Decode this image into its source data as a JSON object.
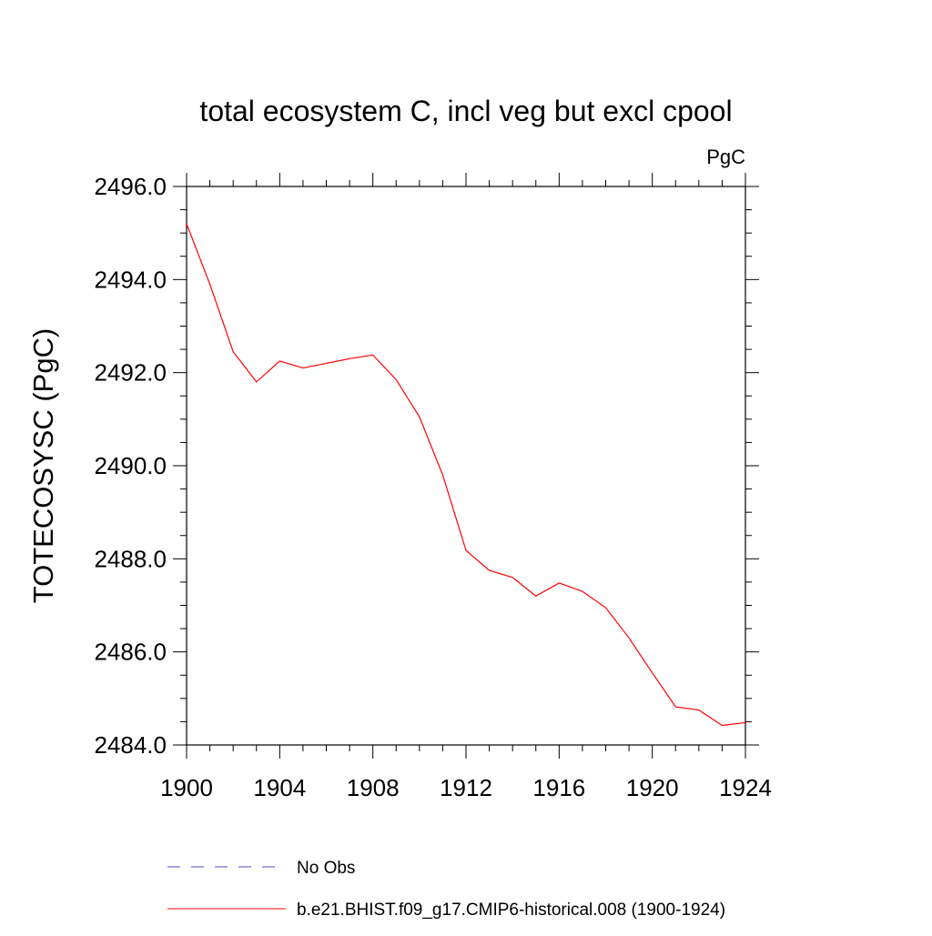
{
  "chart_data": {
    "type": "line",
    "title": "total ecosystem C, incl veg but excl cpool",
    "units": "PgC",
    "ylabel": "TOTECOSYSC  (PgC)",
    "xlabel": "",
    "xlim": [
      1900,
      1924
    ],
    "ylim": [
      2484.0,
      2496.0
    ],
    "x_ticks": [
      "1900",
      "1904",
      "1908",
      "1912",
      "1916",
      "1920",
      "1924"
    ],
    "y_ticks": [
      "2484.0",
      "2486.0",
      "2488.0",
      "2490.0",
      "2492.0",
      "2494.0",
      "2496.0"
    ],
    "grid": false,
    "legend_position": "bottom",
    "series": [
      {
        "name": "No Obs",
        "color": "#4a4acc",
        "style": "dashed",
        "x": [],
        "y": []
      },
      {
        "name": "b.e21.BHIST.f09_g17.CMIP6-historical.008 (1900-1924)",
        "color": "#ff0000",
        "style": "solid",
        "x": [
          1900,
          1901,
          1902,
          1903,
          1904,
          1905,
          1906,
          1907,
          1908,
          1909,
          1910,
          1911,
          1912,
          1913,
          1914,
          1915,
          1916,
          1917,
          1918,
          1919,
          1920,
          1921,
          1922,
          1923,
          1924
        ],
        "y": [
          2495.2,
          2493.9,
          2492.45,
          2491.8,
          2492.25,
          2492.1,
          2492.2,
          2492.3,
          2492.38,
          2491.85,
          2491.05,
          2489.8,
          2488.18,
          2487.75,
          2487.6,
          2487.2,
          2487.48,
          2487.3,
          2486.95,
          2486.3,
          2485.55,
          2484.82,
          2484.75,
          2484.42,
          2484.48
        ]
      }
    ]
  }
}
